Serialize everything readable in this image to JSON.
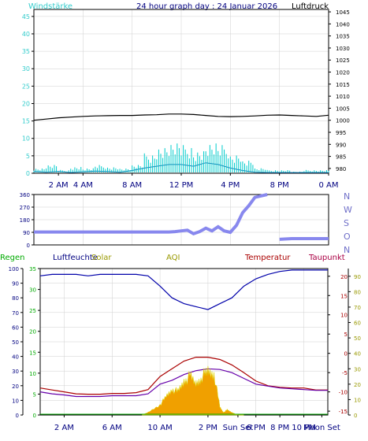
{
  "chart_data": [
    {
      "type": "line",
      "title": "24 hour graph day : 24 Januar 2026",
      "left_axis_label": "Windstärke",
      "right_axis_label": "Luftdruck",
      "x_ticks": [
        "2 AM",
        "4 AM",
        "8 AM",
        "12 PM",
        "4 PM",
        "8 PM",
        "0 AM"
      ],
      "y_left_ticks": [
        0,
        5,
        10,
        15,
        20,
        25,
        30,
        35,
        40,
        45
      ],
      "y_left_range": [
        0,
        47
      ],
      "y_right_ticks": [
        980,
        985,
        990,
        995,
        1000,
        1005,
        1010,
        1015,
        1020,
        1025,
        1030,
        1035,
        1040,
        1045
      ],
      "y_right_range": [
        978,
        1046
      ],
      "grid": true,
      "colors": {
        "wind": "#00cccc",
        "gust": "#00cccc",
        "pressure": "#000000",
        "axis_text": "#000080",
        "wind_text": "#33cccc"
      },
      "series": [
        {
          "key": "pressure",
          "axis": "right",
          "x": [
            0,
            1,
            2,
            3,
            4,
            5,
            6,
            7,
            8,
            9,
            10,
            11,
            12,
            13,
            14,
            15,
            16,
            17,
            18,
            19,
            20,
            21,
            22,
            23,
            24
          ],
          "values": [
            1000.0,
            1000.5,
            1001.0,
            1001.3,
            1001.6,
            1001.8,
            1001.9,
            1002.0,
            1002.0,
            1002.2,
            1002.3,
            1002.6,
            1002.6,
            1002.4,
            1002.0,
            1001.6,
            1001.5,
            1001.6,
            1001.8,
            1002.1,
            1002.2,
            1002.0,
            1001.8,
            1001.6,
            1002.1
          ]
        },
        {
          "key": "wind",
          "axis": "left",
          "x": [
            0,
            1,
            2,
            3,
            4,
            5,
            6,
            7,
            8,
            9,
            10,
            11,
            12,
            13,
            14,
            15,
            16,
            17,
            18,
            19,
            20,
            21,
            22,
            23,
            24
          ],
          "values": [
            0.5,
            0.3,
            0.5,
            0.2,
            0.4,
            0.6,
            0.5,
            0.3,
            0.8,
            1.5,
            2.0,
            2.5,
            2.5,
            2.0,
            3.0,
            2.5,
            1.5,
            0.8,
            0.3,
            0.2,
            0.2,
            0.2,
            0.2,
            0.2,
            0.2
          ]
        },
        {
          "key": "gust",
          "axis": "left",
          "x": [
            0,
            1,
            2,
            3,
            4,
            5,
            6,
            7,
            8,
            9,
            10,
            11,
            12,
            13,
            14,
            15,
            16,
            17,
            18,
            19,
            20,
            21,
            22,
            23,
            24
          ],
          "values": [
            1.5,
            2.5,
            1.0,
            2.0,
            1.5,
            2.5,
            2.0,
            1.5,
            2.5,
            6.0,
            8.0,
            9.0,
            8.5,
            7.0,
            9.0,
            8.5,
            6.0,
            4.0,
            1.5,
            1.0,
            1.0,
            0.5,
            1.0,
            1.0,
            1.0
          ]
        }
      ]
    },
    {
      "type": "scatter",
      "left_axis_label": "",
      "y_ticks": [
        0,
        90,
        180,
        270,
        360
      ],
      "y_range": [
        0,
        360
      ],
      "right_labels": [
        "N",
        "W",
        "S",
        "O",
        "N"
      ],
      "grid": true,
      "colors": {
        "direction": "#8888ee",
        "labels": "#6f6fc8",
        "axis_text": "#000080"
      },
      "series": [
        {
          "key": "direction",
          "x": [
            0,
            2,
            4,
            6,
            8,
            9,
            10,
            10.5,
            11,
            11.5,
            12,
            12.5,
            13,
            13.5,
            14,
            14.5,
            15,
            15.5,
            16,
            16.5,
            17,
            17.5,
            18,
            19,
            20,
            21,
            22,
            23,
            24
          ],
          "values": [
            92,
            92,
            92,
            92,
            92,
            92,
            92,
            92,
            92,
            95,
            100,
            105,
            80,
            95,
            120,
            100,
            130,
            100,
            90,
            140,
            230,
            280,
            340,
            360,
            40,
            45,
            45,
            45,
            45
          ]
        }
      ]
    },
    {
      "type": "line",
      "legend": [
        "Regen",
        "Luftfeuchte",
        "Solar",
        "AQI",
        "Temperatur",
        "Taupunkt"
      ],
      "legend_colors": [
        "#00aa00",
        "#000080",
        "#999900",
        "#999900",
        "#aa0000",
        "#aa0044"
      ],
      "x_ticks": [
        "2 AM",
        "6 AM",
        "10 AM",
        "2 PM",
        "Sun Set",
        "6 PM",
        "8 PM",
        "10 PM",
        "Moon Set"
      ],
      "y_left_humidity_ticks": [
        0,
        10,
        20,
        30,
        40,
        50,
        60,
        70,
        80,
        90,
        100
      ],
      "y_left_rain_ticks": [
        0,
        5,
        10,
        15,
        20,
        25,
        30,
        35
      ],
      "y_right_temp_ticks": [
        -15,
        -10,
        -5,
        0,
        5,
        10,
        15,
        20
      ],
      "y_right_solar_ticks": [
        0,
        10,
        20,
        30,
        40,
        50,
        60,
        70,
        80,
        90
      ],
      "grid": true,
      "colors": {
        "humidity": "#0000aa",
        "temperature": "#aa0000",
        "dewpoint": "#6600aa",
        "solar": "#f0a000",
        "solar_edge": "#dddd00"
      },
      "series": [
        {
          "key": "humidity",
          "axis": "humidity",
          "x": [
            0,
            1,
            2,
            3,
            4,
            5,
            6,
            7,
            8,
            9,
            10,
            11,
            12,
            13,
            14,
            15,
            16,
            17,
            18,
            19,
            20,
            21,
            22,
            23,
            24
          ],
          "values": [
            95,
            96,
            96,
            96,
            95,
            96,
            96,
            96,
            96,
            95,
            88,
            80,
            76,
            74,
            72,
            76,
            80,
            88,
            93,
            96,
            98,
            99,
            99,
            99,
            99
          ]
        },
        {
          "key": "temperature",
          "axis": "temp",
          "x": [
            0,
            1,
            2,
            3,
            4,
            5,
            6,
            7,
            8,
            9,
            10,
            11,
            12,
            13,
            14,
            15,
            16,
            17,
            18,
            19,
            20,
            21,
            22,
            23,
            24
          ],
          "values": [
            -9.0,
            -9.5,
            -10.0,
            -10.5,
            -10.6,
            -10.6,
            -10.4,
            -10.4,
            -10.2,
            -9.4,
            -6.0,
            -4.0,
            -2.0,
            -1.0,
            -1.0,
            -1.6,
            -3.0,
            -5.0,
            -7.2,
            -8.4,
            -8.8,
            -9.0,
            -9.0,
            -9.5,
            -9.5
          ]
        },
        {
          "key": "dewpoint",
          "axis": "temp",
          "x": [
            0,
            1,
            2,
            3,
            4,
            5,
            6,
            7,
            8,
            9,
            10,
            11,
            12,
            13,
            14,
            15,
            16,
            17,
            18,
            19,
            20,
            21,
            22,
            23,
            24
          ],
          "values": [
            -10.0,
            -10.5,
            -10.8,
            -11.2,
            -11.2,
            -11.2,
            -11.0,
            -11.0,
            -11.0,
            -10.5,
            -8.0,
            -7.0,
            -5.5,
            -4.5,
            -4.0,
            -4.2,
            -5.0,
            -6.5,
            -8.0,
            -8.5,
            -9.0,
            -9.2,
            -9.4,
            -9.6,
            -9.6
          ]
        },
        {
          "key": "solar",
          "axis": "solar",
          "x": [
            8.5,
            9,
            10,
            10.5,
            11,
            11.5,
            12,
            12.5,
            13,
            13.5,
            14,
            14.5,
            15,
            15.3,
            15.6,
            16,
            16.5,
            17
          ],
          "values": [
            0,
            2,
            8,
            14,
            20,
            18,
            26,
            30,
            24,
            30,
            34,
            32,
            6,
            2,
            4,
            2,
            0,
            0
          ]
        }
      ]
    }
  ]
}
